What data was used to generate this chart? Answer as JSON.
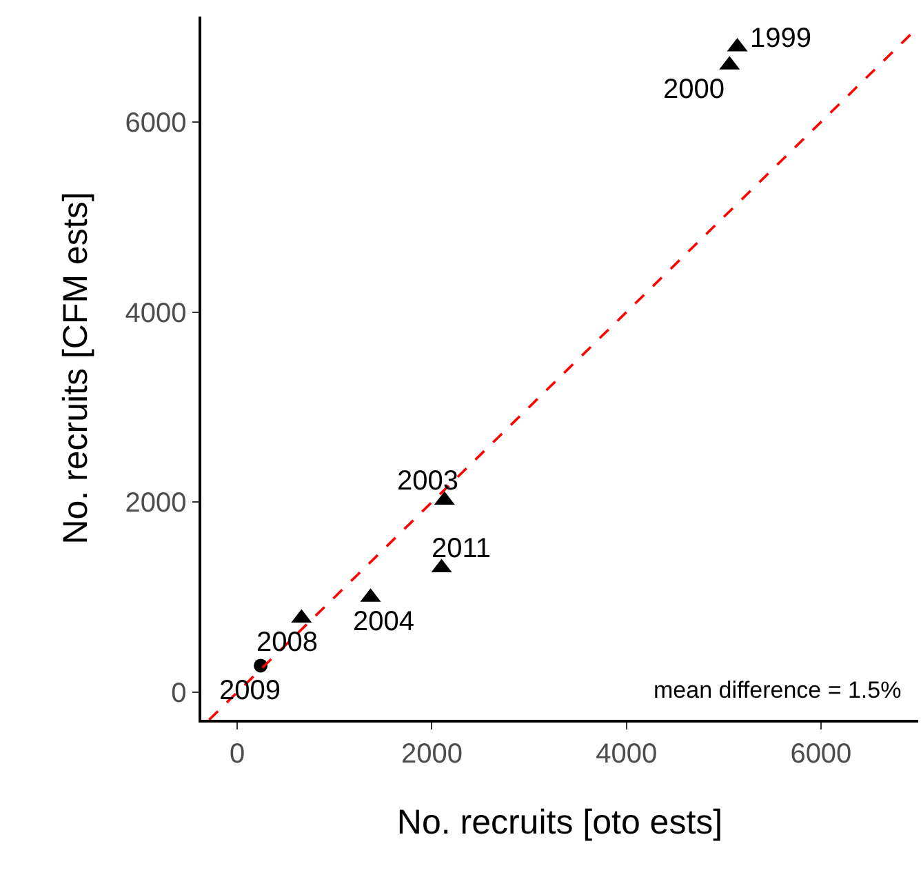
{
  "chart_data": {
    "type": "scatter",
    "xlabel": "No. recruits [oto ests]",
    "ylabel": "No. recruits [CFM ests]",
    "xlim": [
      -370,
      7000
    ],
    "ylim": [
      -290,
      7110
    ],
    "xticks": [
      0,
      2000,
      4000,
      6000
    ],
    "yticks": [
      0,
      2000,
      4000,
      6000
    ],
    "series": [
      {
        "marker": "triangle",
        "color": "#000000",
        "x": [
          5140,
          5060,
          2130,
          2100,
          1370,
          660
        ],
        "values": [
          6790,
          6600,
          2020,
          1310,
          1000,
          780
        ]
      },
      {
        "marker": "circle",
        "color": "#000000",
        "x": [
          240
        ],
        "values": [
          280
        ]
      },
      {
        "type": "line",
        "marker": "none",
        "line_style": "dashed",
        "color": "#ff0000",
        "x": [
          -290,
          7000
        ],
        "values": [
          -290,
          7000
        ]
      }
    ],
    "annotations": [
      {
        "text": "1999",
        "x": 5140,
        "y": 6790
      },
      {
        "text": "2000",
        "x": 5060,
        "y": 6600
      },
      {
        "text": "2003",
        "x": 2130,
        "y": 2020
      },
      {
        "text": "2011",
        "x": 2100,
        "y": 1310
      },
      {
        "text": "2004",
        "x": 1370,
        "y": 1000
      },
      {
        "text": "2008",
        "x": 660,
        "y": 780
      },
      {
        "text": "2009",
        "x": 240,
        "y": 280
      },
      "mean difference = 1.5%"
    ]
  }
}
